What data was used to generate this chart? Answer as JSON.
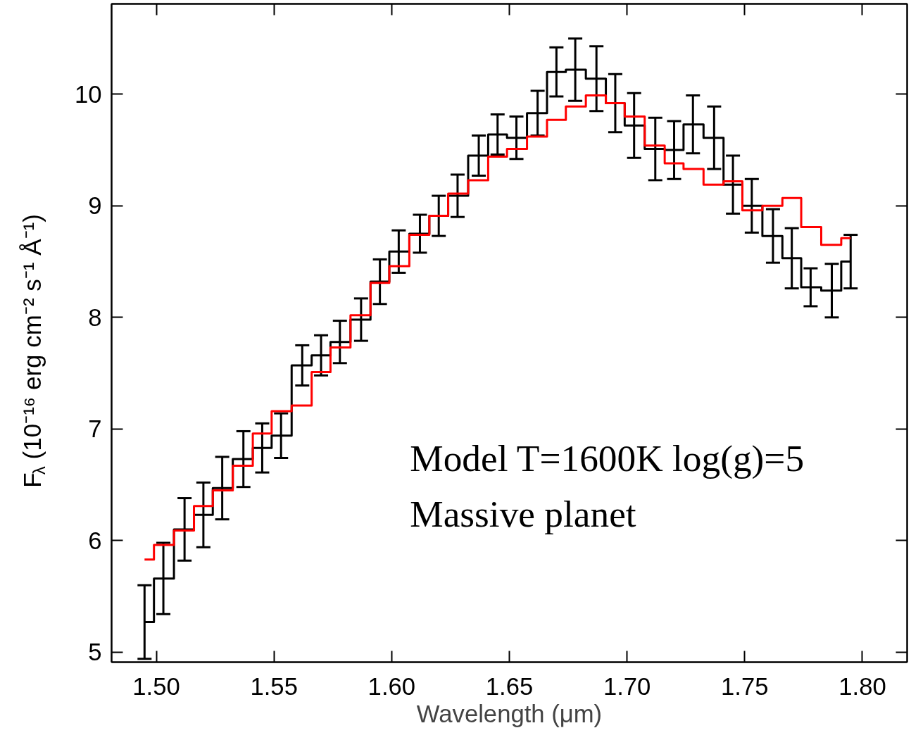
{
  "chart_data": {
    "type": "step",
    "xlabel": "Wavelength (μm)",
    "ylabel": "F$_{λ}$ (10⁻¹⁶ erg cm⁻² s⁻¹ Å⁻¹)",
    "x": [
      1.495,
      1.503,
      1.512,
      1.52,
      1.528,
      1.537,
      1.545,
      1.553,
      1.562,
      1.57,
      1.578,
      1.587,
      1.595,
      1.603,
      1.612,
      1.62,
      1.628,
      1.637,
      1.645,
      1.653,
      1.662,
      1.67,
      1.678,
      1.687,
      1.695,
      1.703,
      1.712,
      1.72,
      1.728,
      1.737,
      1.745,
      1.753,
      1.762,
      1.77,
      1.778,
      1.787,
      1.795
    ],
    "series": [
      {
        "color": "#000000",
        "values": [
          5.27,
          5.66,
          6.1,
          6.23,
          6.47,
          6.73,
          6.83,
          6.94,
          7.57,
          7.66,
          7.78,
          7.98,
          8.32,
          8.59,
          8.75,
          8.91,
          9.09,
          9.45,
          9.64,
          9.61,
          9.83,
          10.2,
          10.22,
          10.14,
          9.92,
          9.72,
          9.51,
          9.5,
          9.73,
          9.61,
          9.19,
          9.0,
          8.73,
          8.53,
          8.27,
          8.24,
          8.5
        ],
        "errors": [
          0.33,
          0.32,
          0.28,
          0.29,
          0.28,
          0.25,
          0.22,
          0.2,
          0.18,
          0.18,
          0.19,
          0.19,
          0.2,
          0.19,
          0.17,
          0.18,
          0.19,
          0.18,
          0.18,
          0.19,
          0.2,
          0.22,
          0.28,
          0.29,
          0.26,
          0.29,
          0.28,
          0.26,
          0.26,
          0.28,
          0.26,
          0.24,
          0.24,
          0.27,
          0.17,
          0.24,
          0.24
        ]
      },
      {
        "color": "#ff0000",
        "values": [
          5.83,
          5.96,
          6.09,
          6.31,
          6.45,
          6.67,
          6.96,
          7.16,
          7.21,
          7.51,
          7.73,
          8.02,
          8.31,
          8.46,
          8.74,
          8.91,
          9.11,
          9.23,
          9.44,
          9.51,
          9.62,
          9.77,
          9.89,
          9.99,
          9.92,
          9.8,
          9.54,
          9.38,
          9.33,
          9.19,
          9.22,
          8.96,
          9.0,
          9.07,
          8.81,
          8.65,
          8.71
        ]
      }
    ],
    "xlim": [
      1.481,
      1.819
    ],
    "ylim": [
      4.91,
      10.81
    ],
    "xticks": [
      {
        "value": 1.5,
        "label": "1.50"
      },
      1.55,
      {
        "value": 1.6,
        "label": "1.60"
      },
      1.65,
      {
        "value": 1.7,
        "label": "1.70"
      },
      1.75,
      {
        "value": 1.8,
        "label": "1.80"
      }
    ],
    "yticks": [
      5,
      6,
      7,
      8,
      9,
      10
    ],
    "grid": false,
    "annotations": [
      "Model T=1600K log(g)=5",
      "Massive planet"
    ]
  }
}
